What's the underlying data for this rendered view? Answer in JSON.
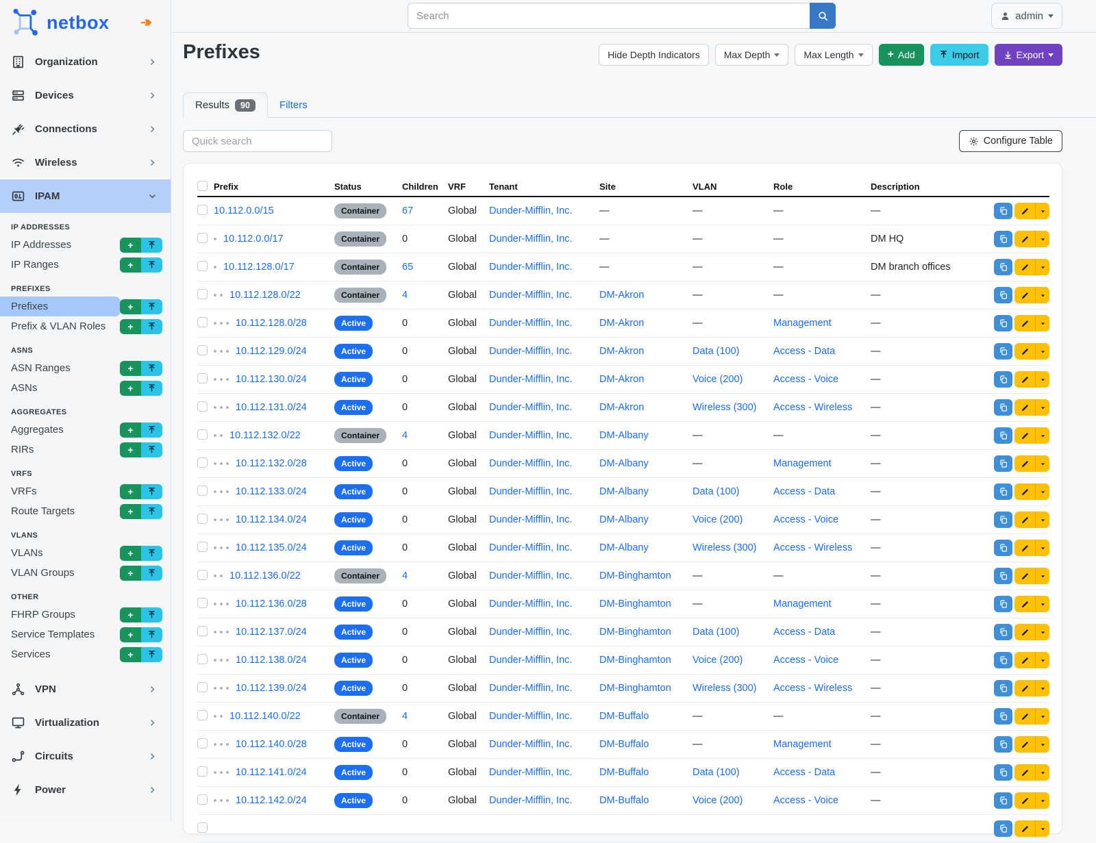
{
  "brand": {
    "name": "netbox",
    "pin_icon": "pushpin-icon"
  },
  "topbar": {
    "search_placeholder": "Search",
    "search_icon": "search-icon",
    "user": "admin",
    "user_icon": "person-icon"
  },
  "page": {
    "title": "Prefixes",
    "toolbar": {
      "hide_depth": "Hide Depth Indicators",
      "max_depth": "Max Depth",
      "max_length": "Max Length",
      "add": "Add",
      "import": "Import",
      "export": "Export"
    },
    "tabs": {
      "results": "Results",
      "results_count": "90",
      "filters": "Filters"
    },
    "quick_search_placeholder": "Quick search",
    "configure_table": "Configure Table",
    "empty_dash": "—"
  },
  "sidebar": {
    "top_items": [
      {
        "label": "Organization",
        "icon": "building-icon"
      },
      {
        "label": "Devices",
        "icon": "server-rack-icon"
      },
      {
        "label": "Connections",
        "icon": "plug-icon"
      },
      {
        "label": "Wireless",
        "icon": "wifi-icon"
      }
    ],
    "ipam": {
      "label": "IPAM",
      "icon": "ipam-binary-icon",
      "expanded": true
    },
    "sections": [
      {
        "label": "IP ADDRESSES",
        "items": [
          {
            "label": "IP Addresses"
          },
          {
            "label": "IP Ranges"
          }
        ]
      },
      {
        "label": "PREFIXES",
        "items": [
          {
            "label": "Prefixes",
            "active": true
          },
          {
            "label": "Prefix & VLAN Roles"
          }
        ]
      },
      {
        "label": "ASNS",
        "items": [
          {
            "label": "ASN Ranges"
          },
          {
            "label": "ASNs"
          }
        ]
      },
      {
        "label": "AGGREGATES",
        "items": [
          {
            "label": "Aggregates"
          },
          {
            "label": "RIRs"
          }
        ]
      },
      {
        "label": "VRFS",
        "items": [
          {
            "label": "VRFs"
          },
          {
            "label": "Route Targets"
          }
        ]
      },
      {
        "label": "VLANS",
        "items": [
          {
            "label": "VLANs"
          },
          {
            "label": "VLAN Groups"
          }
        ]
      },
      {
        "label": "OTHER",
        "items": [
          {
            "label": "FHRP Groups"
          },
          {
            "label": "Service Templates"
          },
          {
            "label": "Services"
          }
        ]
      }
    ],
    "bottom_items": [
      {
        "label": "VPN",
        "icon": "vpn-nodes-icon"
      },
      {
        "label": "Virtualization",
        "icon": "monitor-icon"
      },
      {
        "label": "Circuits",
        "icon": "route-icon"
      },
      {
        "label": "Power",
        "icon": "lightning-icon"
      }
    ]
  },
  "table": {
    "columns": [
      "Prefix",
      "Status",
      "Children",
      "VRF",
      "Tenant",
      "Site",
      "VLAN",
      "Role",
      "Description"
    ],
    "rows": [
      {
        "depth": 0,
        "prefix": "10.112.0.0/15",
        "status": "Container",
        "children": "67",
        "children_link": true,
        "vrf": "Global",
        "tenant": "Dunder-Mifflin, Inc.",
        "site": "",
        "vlan": "",
        "role": "",
        "description": ""
      },
      {
        "depth": 1,
        "prefix": "10.112.0.0/17",
        "status": "Container",
        "children": "0",
        "children_link": false,
        "vrf": "Global",
        "tenant": "Dunder-Mifflin, Inc.",
        "site": "",
        "vlan": "",
        "role": "",
        "description": "DM HQ"
      },
      {
        "depth": 1,
        "prefix": "10.112.128.0/17",
        "status": "Container",
        "children": "65",
        "children_link": true,
        "vrf": "Global",
        "tenant": "Dunder-Mifflin, Inc.",
        "site": "",
        "vlan": "",
        "role": "",
        "description": "DM branch offices"
      },
      {
        "depth": 2,
        "prefix": "10.112.128.0/22",
        "status": "Container",
        "children": "4",
        "children_link": true,
        "vrf": "Global",
        "tenant": "Dunder-Mifflin, Inc.",
        "site": "DM-Akron",
        "vlan": "",
        "role": "",
        "description": ""
      },
      {
        "depth": 3,
        "prefix": "10.112.128.0/28",
        "status": "Active",
        "children": "0",
        "children_link": false,
        "vrf": "Global",
        "tenant": "Dunder-Mifflin, Inc.",
        "site": "DM-Akron",
        "vlan": "",
        "role": "Management",
        "description": ""
      },
      {
        "depth": 3,
        "prefix": "10.112.129.0/24",
        "status": "Active",
        "children": "0",
        "children_link": false,
        "vrf": "Global",
        "tenant": "Dunder-Mifflin, Inc.",
        "site": "DM-Akron",
        "vlan": "Data (100)",
        "role": "Access - Data",
        "description": ""
      },
      {
        "depth": 3,
        "prefix": "10.112.130.0/24",
        "status": "Active",
        "children": "0",
        "children_link": false,
        "vrf": "Global",
        "tenant": "Dunder-Mifflin, Inc.",
        "site": "DM-Akron",
        "vlan": "Voice (200)",
        "role": "Access - Voice",
        "description": ""
      },
      {
        "depth": 3,
        "prefix": "10.112.131.0/24",
        "status": "Active",
        "children": "0",
        "children_link": false,
        "vrf": "Global",
        "tenant": "Dunder-Mifflin, Inc.",
        "site": "DM-Akron",
        "vlan": "Wireless (300)",
        "role": "Access - Wireless",
        "description": ""
      },
      {
        "depth": 2,
        "prefix": "10.112.132.0/22",
        "status": "Container",
        "children": "4",
        "children_link": true,
        "vrf": "Global",
        "tenant": "Dunder-Mifflin, Inc.",
        "site": "DM-Albany",
        "vlan": "",
        "role": "",
        "description": ""
      },
      {
        "depth": 3,
        "prefix": "10.112.132.0/28",
        "status": "Active",
        "children": "0",
        "children_link": false,
        "vrf": "Global",
        "tenant": "Dunder-Mifflin, Inc.",
        "site": "DM-Albany",
        "vlan": "",
        "role": "Management",
        "description": ""
      },
      {
        "depth": 3,
        "prefix": "10.112.133.0/24",
        "status": "Active",
        "children": "0",
        "children_link": false,
        "vrf": "Global",
        "tenant": "Dunder-Mifflin, Inc.",
        "site": "DM-Albany",
        "vlan": "Data (100)",
        "role": "Access - Data",
        "description": ""
      },
      {
        "depth": 3,
        "prefix": "10.112.134.0/24",
        "status": "Active",
        "children": "0",
        "children_link": false,
        "vrf": "Global",
        "tenant": "Dunder-Mifflin, Inc.",
        "site": "DM-Albany",
        "vlan": "Voice (200)",
        "role": "Access - Voice",
        "description": ""
      },
      {
        "depth": 3,
        "prefix": "10.112.135.0/24",
        "status": "Active",
        "children": "0",
        "children_link": false,
        "vrf": "Global",
        "tenant": "Dunder-Mifflin, Inc.",
        "site": "DM-Albany",
        "vlan": "Wireless (300)",
        "role": "Access - Wireless",
        "description": ""
      },
      {
        "depth": 2,
        "prefix": "10.112.136.0/22",
        "status": "Container",
        "children": "4",
        "children_link": true,
        "vrf": "Global",
        "tenant": "Dunder-Mifflin, Inc.",
        "site": "DM-Binghamton",
        "vlan": "",
        "role": "",
        "description": ""
      },
      {
        "depth": 3,
        "prefix": "10.112.136.0/28",
        "status": "Active",
        "children": "0",
        "children_link": false,
        "vrf": "Global",
        "tenant": "Dunder-Mifflin, Inc.",
        "site": "DM-Binghamton",
        "vlan": "",
        "role": "Management",
        "description": ""
      },
      {
        "depth": 3,
        "prefix": "10.112.137.0/24",
        "status": "Active",
        "children": "0",
        "children_link": false,
        "vrf": "Global",
        "tenant": "Dunder-Mifflin, Inc.",
        "site": "DM-Binghamton",
        "vlan": "Data (100)",
        "role": "Access - Data",
        "description": ""
      },
      {
        "depth": 3,
        "prefix": "10.112.138.0/24",
        "status": "Active",
        "children": "0",
        "children_link": false,
        "vrf": "Global",
        "tenant": "Dunder-Mifflin, Inc.",
        "site": "DM-Binghamton",
        "vlan": "Voice (200)",
        "role": "Access - Voice",
        "description": ""
      },
      {
        "depth": 3,
        "prefix": "10.112.139.0/24",
        "status": "Active",
        "children": "0",
        "children_link": false,
        "vrf": "Global",
        "tenant": "Dunder-Mifflin, Inc.",
        "site": "DM-Binghamton",
        "vlan": "Wireless (300)",
        "role": "Access - Wireless",
        "description": ""
      },
      {
        "depth": 2,
        "prefix": "10.112.140.0/22",
        "status": "Container",
        "children": "4",
        "children_link": true,
        "vrf": "Global",
        "tenant": "Dunder-Mifflin, Inc.",
        "site": "DM-Buffalo",
        "vlan": "",
        "role": "",
        "description": ""
      },
      {
        "depth": 3,
        "prefix": "10.112.140.0/28",
        "status": "Active",
        "children": "0",
        "children_link": false,
        "vrf": "Global",
        "tenant": "Dunder-Mifflin, Inc.",
        "site": "DM-Buffalo",
        "vlan": "",
        "role": "Management",
        "description": ""
      },
      {
        "depth": 3,
        "prefix": "10.112.141.0/24",
        "status": "Active",
        "children": "0",
        "children_link": false,
        "vrf": "Global",
        "tenant": "Dunder-Mifflin, Inc.",
        "site": "DM-Buffalo",
        "vlan": "Data (100)",
        "role": "Access - Data",
        "description": ""
      },
      {
        "depth": 3,
        "prefix": "10.112.142.0/24",
        "status": "Active",
        "children": "0",
        "children_link": false,
        "vrf": "Global",
        "tenant": "Dunder-Mifflin, Inc.",
        "site": "DM-Buffalo",
        "vlan": "Voice (200)",
        "role": "Access - Voice",
        "description": ""
      },
      {
        "partial": true
      }
    ]
  },
  "colors": {
    "link": "#1a6ff5",
    "active_badge": "#1c6ef2",
    "container_badge": "#a9b1ba",
    "green": "#18935d",
    "cyan": "#2bc3e6",
    "purple": "#6e42c1",
    "yellow": "#ffc107",
    "action_blue": "#3e8ed8",
    "nav_active": "#b4d0fa",
    "pin_orange": "#fd7e14"
  }
}
